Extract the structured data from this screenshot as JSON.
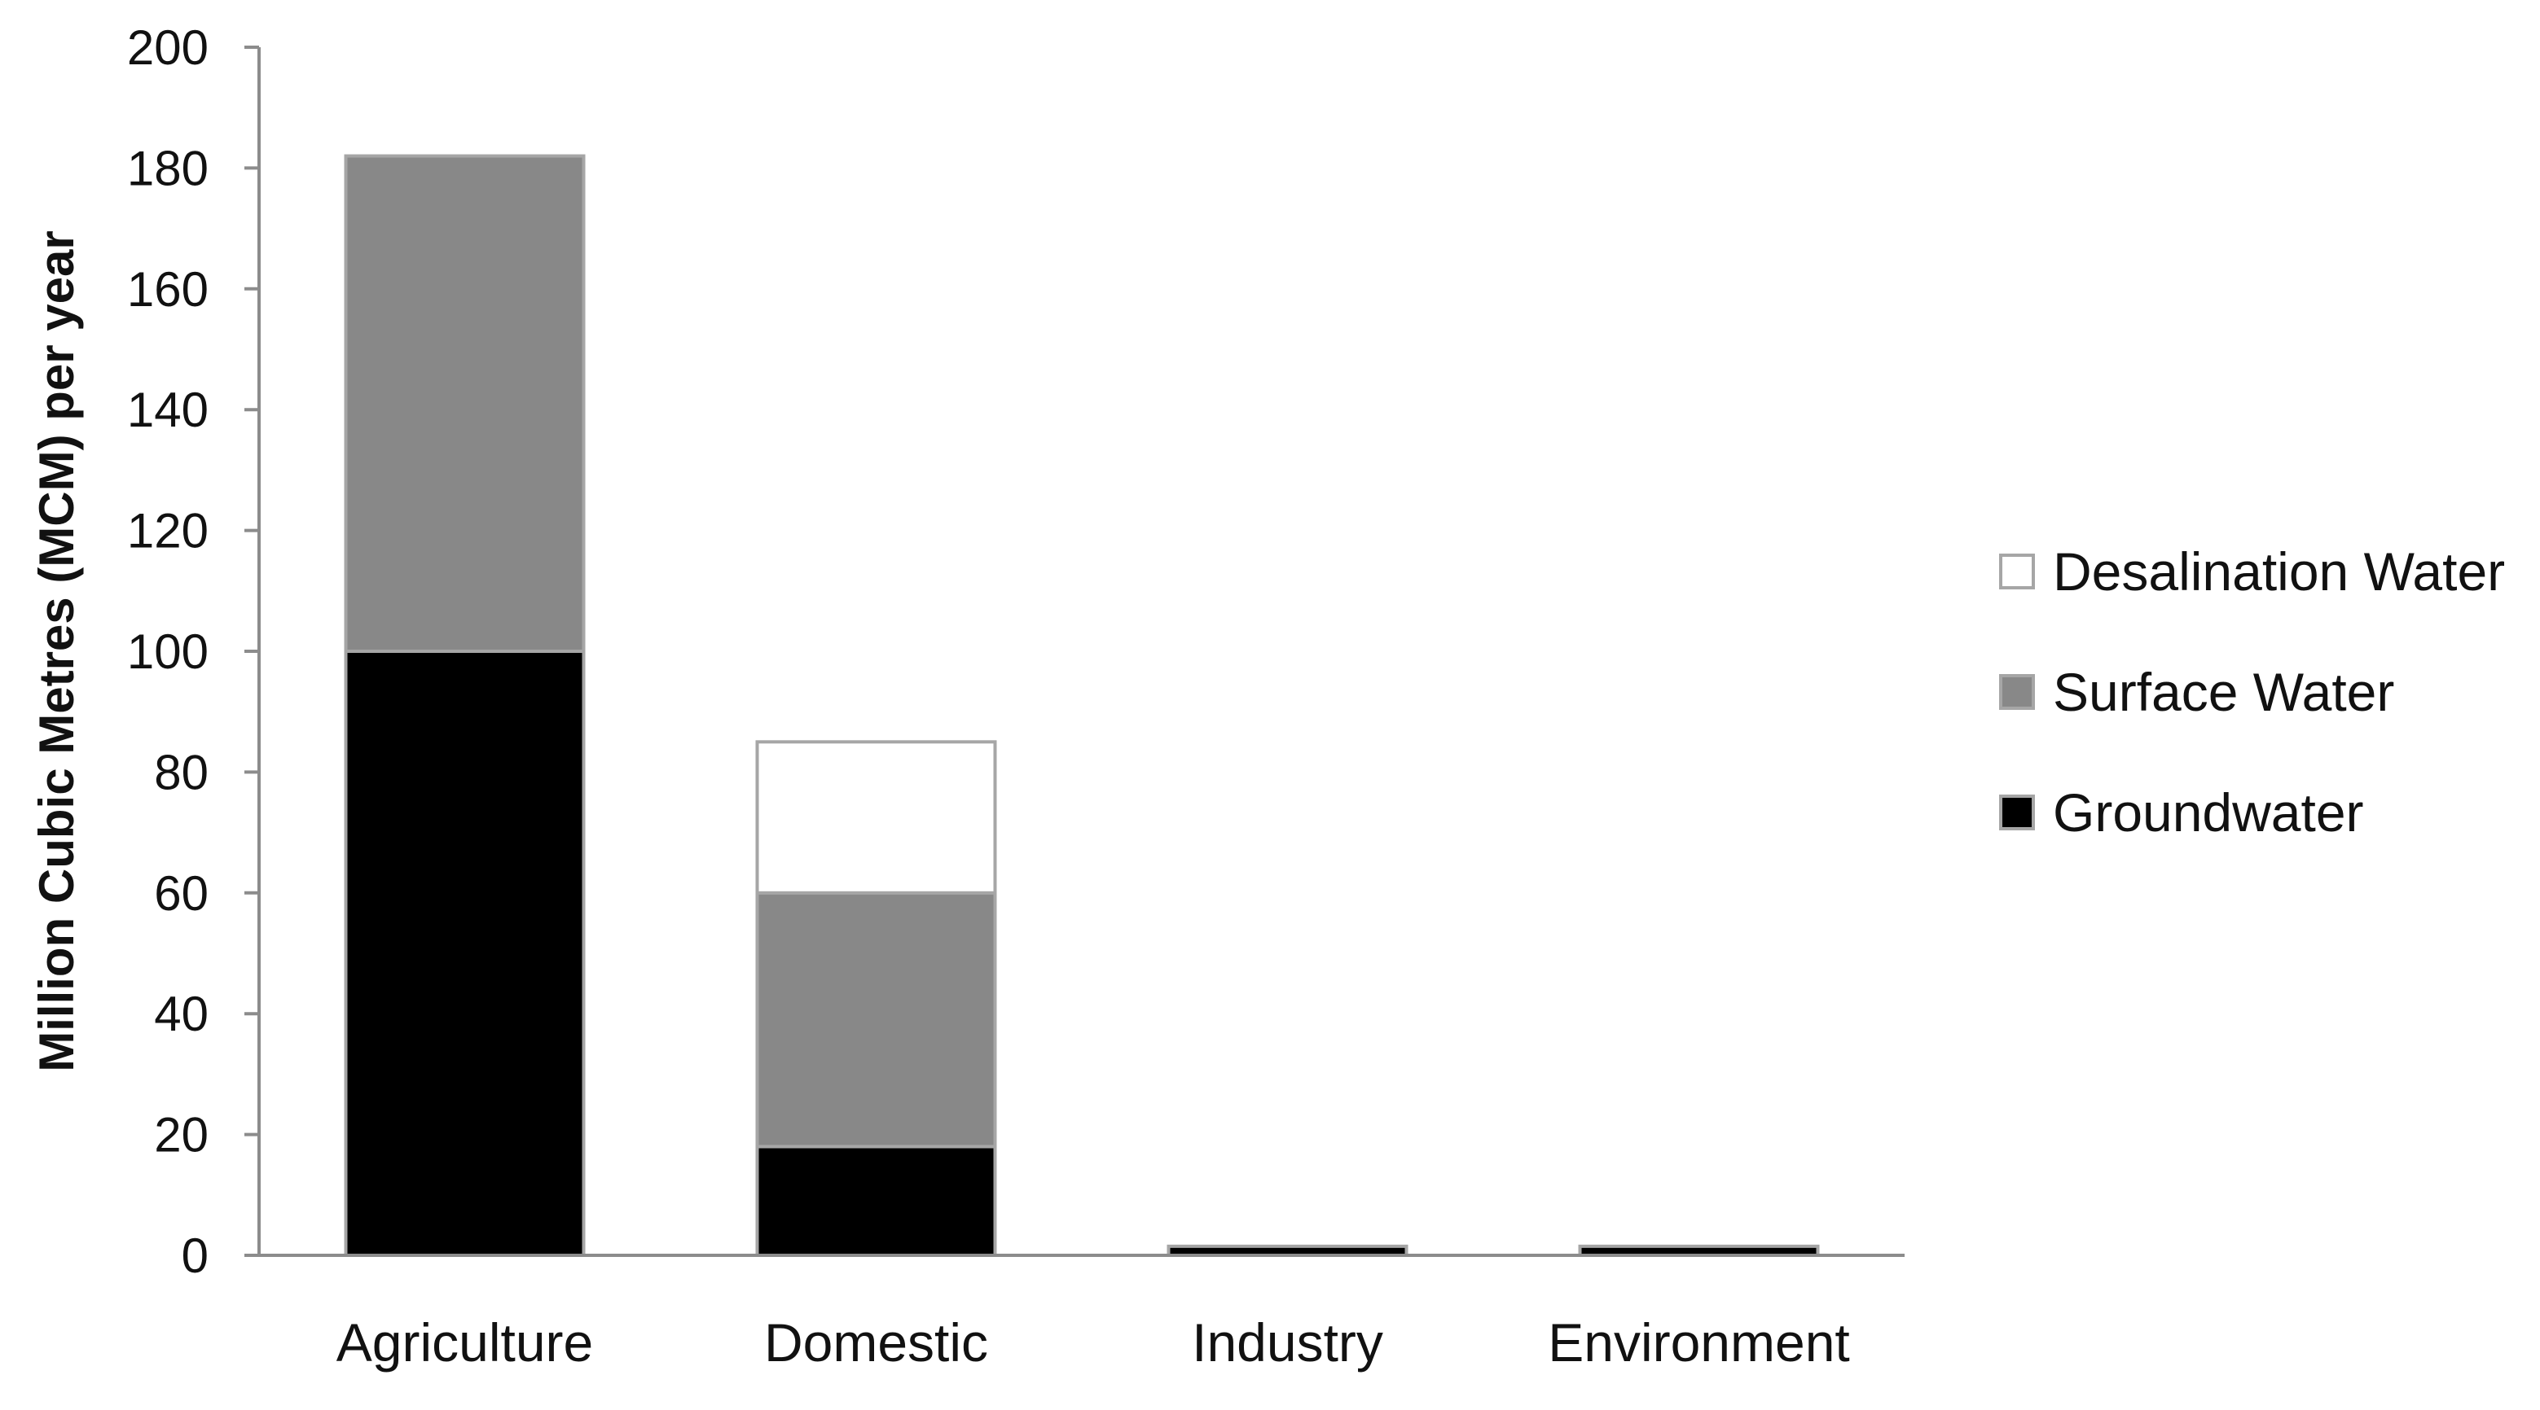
{
  "chart_data": {
    "type": "bar",
    "stacked": true,
    "categories": [
      "Agriculture",
      "Domestic",
      "Industry",
      "Environment"
    ],
    "series": [
      {
        "name": "Groundwater",
        "values": [
          100,
          18,
          1.5,
          1.5
        ],
        "color": "#000000"
      },
      {
        "name": "Surface Water",
        "values": [
          82,
          42,
          0,
          0
        ],
        "color": "#888888"
      },
      {
        "name": "Desalination Water",
        "values": [
          0,
          25,
          0,
          0
        ],
        "color": "#ffffff"
      }
    ],
    "legend_order": [
      "Desalination Water",
      "Surface Water",
      "Groundwater"
    ],
    "legend_placement": "right",
    "title": "",
    "xlabel": "",
    "ylabel": "Million Cubic Metres (MCM) per year",
    "ylim": [
      0,
      200
    ],
    "yticks": [
      0,
      20,
      40,
      60,
      80,
      100,
      120,
      140,
      160,
      180,
      200
    ],
    "grid": false,
    "axis_color": "#8c8c8c",
    "bar_edge_color": "#a6a6a6"
  }
}
